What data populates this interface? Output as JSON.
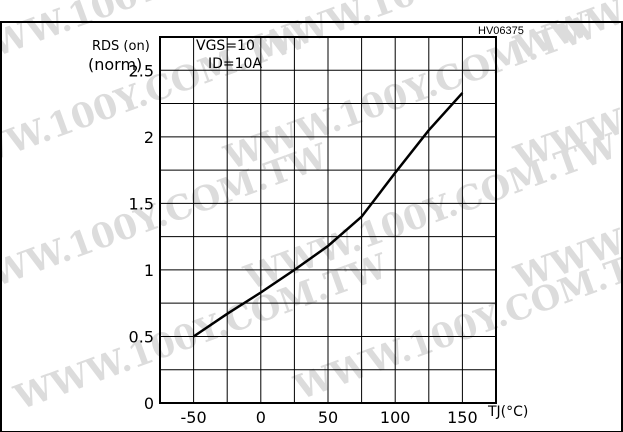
{
  "chart_data": {
    "type": "line",
    "figure_id": "HV06375",
    "ylabel_line1": "RDS (on)",
    "ylabel_line2": "(norm)",
    "xlabel": "TJ(°C)",
    "annotation_line1": "VGS=10",
    "annotation_line2": "ID=10A",
    "xlim": [
      -75,
      175
    ],
    "ylim": [
      0,
      2.75
    ],
    "x_ticks": [
      -50,
      0,
      50,
      100,
      150
    ],
    "x_tick_labels": [
      "-50",
      "0",
      "50",
      "100",
      "150"
    ],
    "y_ticks": [
      0,
      0.5,
      1,
      1.5,
      2,
      2.5
    ],
    "y_tick_labels": [
      "0",
      "0.5",
      "1",
      "1.5",
      "2",
      "2.5"
    ],
    "grid": true,
    "series": [
      {
        "x": [
          -50,
          -25,
          0,
          25,
          50,
          75,
          100,
          125,
          150
        ],
        "y": [
          0.5,
          0.67,
          0.83,
          1.0,
          1.18,
          1.4,
          1.73,
          2.05,
          2.33
        ]
      }
    ],
    "watermark": "WWW.100Y.COM.TW"
  }
}
